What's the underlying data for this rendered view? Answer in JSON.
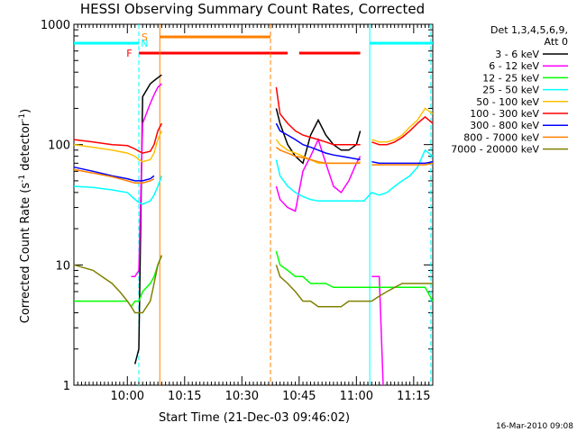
{
  "chart_data": {
    "type": "line",
    "title": "HESSI Observing Summary Count Rates, Corrected",
    "xlabel": "Start Time (21-Dec-03 09:46:02)",
    "ylabel_main": "Corrected Count Rate (s",
    "ylabel_sup1": "-1",
    "ylabel_mid": " detector",
    "ylabel_sup2": "-1",
    "ylabel_end": ")",
    "ylim": [
      1,
      1000
    ],
    "yscale": "log",
    "xlim_minutes": [
      0,
      94
    ],
    "x_ticks": [
      {
        "label": "10:00",
        "min": 14
      },
      {
        "label": "10:15",
        "min": 29
      },
      {
        "label": "10:30",
        "min": 44
      },
      {
        "label": "10:45",
        "min": 59
      },
      {
        "label": "11:00",
        "min": 74
      },
      {
        "label": "11:15",
        "min": 89
      }
    ],
    "y_ticks": [
      {
        "label": "1",
        "value": 1
      },
      {
        "label": "10",
        "value": 10
      },
      {
        "label": "100",
        "value": 100
      },
      {
        "label": "1000",
        "value": 1000
      }
    ],
    "legend_header": [
      "Det 1,3,4,5,6,9,",
      "Att 0"
    ],
    "series": [
      {
        "name": "3 - 6 keV",
        "color": "#000000",
        "x": [
          0,
          5,
          10,
          14,
          16,
          17,
          18,
          20,
          21,
          22,
          23,
          52,
          53,
          54,
          56,
          58,
          60,
          62,
          64,
          66,
          68,
          70,
          72,
          74,
          75,
          76,
          78,
          80,
          82,
          84,
          86,
          88,
          90,
          92,
          94
        ],
        "y": [
          null,
          null,
          null,
          null,
          1.5,
          2,
          250,
          320,
          340,
          360,
          380,
          null,
          200,
          150,
          100,
          80,
          70,
          120,
          160,
          120,
          100,
          90,
          90,
          100,
          130,
          null,
          null,
          null,
          null,
          null,
          null,
          null,
          null,
          null,
          null
        ]
      },
      {
        "name": "6 - 12 keV",
        "color": "#ff00ff",
        "x": [
          0,
          5,
          10,
          14,
          15,
          16,
          17,
          18,
          20,
          21,
          22,
          23,
          52,
          53,
          54,
          56,
          58,
          60,
          62,
          64,
          66,
          68,
          70,
          72,
          74,
          75,
          76,
          78,
          80,
          81,
          82,
          84,
          86,
          88,
          90,
          92,
          94
        ],
        "y": [
          null,
          null,
          null,
          null,
          8,
          8,
          9,
          150,
          220,
          260,
          300,
          320,
          null,
          45,
          35,
          30,
          28,
          60,
          80,
          110,
          70,
          45,
          40,
          50,
          70,
          80,
          null,
          8,
          8,
          1,
          null,
          null,
          null,
          null,
          null,
          null,
          null
        ]
      },
      {
        "name": "12 - 25 keV",
        "color": "#00ff00",
        "x": [
          0,
          5,
          10,
          12,
          14,
          15,
          16,
          17,
          18,
          20,
          21,
          22,
          23,
          52,
          53,
          54,
          56,
          58,
          60,
          62,
          64,
          66,
          68,
          70,
          72,
          74,
          75,
          76,
          78,
          80,
          82,
          84,
          86,
          88,
          90,
          92,
          94
        ],
        "y": [
          5,
          5,
          5,
          5,
          5,
          4.5,
          5,
          5,
          6,
          7,
          8,
          10,
          12,
          null,
          13,
          10,
          9,
          8,
          8,
          7,
          7,
          7,
          6.5,
          6.5,
          6.5,
          6.5,
          6.5,
          6.5,
          6.5,
          6.5,
          6.5,
          6.5,
          6.5,
          6.5,
          6.5,
          6.5,
          5
        ]
      },
      {
        "name": "25 - 50 keV",
        "color": "#00ffff",
        "x": [
          0,
          5,
          10,
          14,
          16,
          17,
          18,
          20,
          21,
          22,
          23,
          52,
          53,
          54,
          56,
          58,
          60,
          62,
          64,
          66,
          68,
          70,
          72,
          74,
          75,
          76,
          78,
          80,
          82,
          84,
          86,
          88,
          90,
          92,
          94
        ],
        "y": [
          45,
          44,
          42,
          40,
          35,
          33,
          32,
          34,
          38,
          45,
          55,
          null,
          75,
          55,
          45,
          40,
          37,
          35,
          34,
          34,
          34,
          34,
          34,
          34,
          34,
          34,
          40,
          38,
          40,
          45,
          50,
          55,
          65,
          90,
          80
        ]
      },
      {
        "name": "50 - 100 keV",
        "color": "#ffc000",
        "x": [
          0,
          5,
          10,
          14,
          16,
          17,
          18,
          20,
          21,
          22,
          23,
          52,
          53,
          54,
          56,
          58,
          60,
          62,
          64,
          66,
          68,
          70,
          72,
          74,
          75,
          76,
          78,
          80,
          82,
          84,
          86,
          88,
          90,
          92,
          94
        ],
        "y": [
          100,
          95,
          90,
          85,
          80,
          75,
          72,
          75,
          85,
          110,
          130,
          null,
          110,
          100,
          90,
          85,
          80,
          75,
          70,
          70,
          70,
          70,
          70,
          70,
          72,
          null,
          110,
          105,
          105,
          110,
          120,
          140,
          160,
          200,
          180
        ]
      },
      {
        "name": "100 - 300 keV",
        "color": "#ff0000",
        "x": [
          0,
          5,
          10,
          14,
          16,
          17,
          18,
          20,
          21,
          22,
          23,
          52,
          53,
          54,
          56,
          58,
          60,
          62,
          64,
          66,
          68,
          70,
          72,
          74,
          75,
          76,
          78,
          80,
          82,
          84,
          86,
          88,
          90,
          92,
          94
        ],
        "y": [
          110,
          105,
          100,
          98,
          92,
          88,
          85,
          88,
          100,
          130,
          150,
          null,
          300,
          180,
          150,
          130,
          120,
          115,
          110,
          105,
          100,
          100,
          100,
          100,
          100,
          null,
          105,
          100,
          100,
          105,
          115,
          130,
          150,
          170,
          150
        ]
      },
      {
        "name": "300 - 800 keV",
        "color": "#0000ff",
        "x": [
          0,
          5,
          10,
          14,
          16,
          17,
          18,
          20,
          21,
          22,
          23,
          52,
          53,
          54,
          56,
          58,
          60,
          62,
          64,
          66,
          68,
          70,
          72,
          74,
          75,
          76,
          78,
          80,
          82,
          84,
          86,
          88,
          90,
          92,
          94
        ],
        "y": [
          65,
          60,
          55,
          52,
          50,
          50,
          50,
          52,
          55,
          null,
          null,
          null,
          150,
          130,
          120,
          110,
          100,
          95,
          90,
          85,
          82,
          80,
          78,
          76,
          75,
          null,
          72,
          70,
          70,
          70,
          70,
          70,
          70,
          70,
          72
        ]
      },
      {
        "name": "800 - 7000 keV",
        "color": "#ff8000",
        "x": [
          0,
          5,
          10,
          14,
          16,
          17,
          18,
          20,
          21,
          22,
          23,
          52,
          53,
          54,
          56,
          58,
          60,
          62,
          64,
          66,
          68,
          70,
          72,
          74,
          75,
          76,
          78,
          80,
          82,
          84,
          86,
          88,
          90,
          92,
          94
        ],
        "y": [
          62,
          58,
          54,
          50,
          48,
          48,
          48,
          50,
          52,
          null,
          null,
          null,
          95,
          90,
          85,
          80,
          78,
          75,
          72,
          70,
          70,
          70,
          70,
          70,
          70,
          null,
          68,
          68,
          68,
          68,
          68,
          68,
          68,
          68,
          70
        ]
      },
      {
        "name": "7000 - 20000 keV",
        "color": "#808000",
        "x": [
          0,
          5,
          10,
          12,
          14,
          15,
          16,
          17,
          18,
          20,
          21,
          22,
          23,
          52,
          53,
          54,
          56,
          58,
          60,
          62,
          64,
          66,
          68,
          70,
          72,
          74,
          75,
          76,
          78,
          80,
          82,
          84,
          86,
          88,
          90,
          92,
          94
        ],
        "y": [
          10,
          9,
          7,
          6,
          5,
          4.5,
          4,
          4,
          4,
          5,
          7,
          10,
          12,
          null,
          10,
          8,
          7,
          6,
          5,
          5,
          4.5,
          4.5,
          4.5,
          4.5,
          5,
          5,
          5,
          5,
          5,
          5.5,
          6,
          6.5,
          7,
          7,
          7,
          7,
          7
        ]
      }
    ],
    "state_bars": [
      {
        "label": "S",
        "color": "#ff8000",
        "start_min": 22.5,
        "end_min": 51.5
      },
      {
        "label": "N",
        "color": "#00ffff",
        "segments": [
          [
            0,
            17
          ],
          [
            77.5,
            94
          ]
        ]
      },
      {
        "label": "F",
        "color": "#ff0000",
        "segments": [
          [
            17,
            56
          ],
          [
            59,
            75
          ]
        ]
      }
    ],
    "vlines": [
      {
        "min": 17,
        "color": "#00ffff",
        "style": "dashed"
      },
      {
        "min": 22.5,
        "color": "#ff8000",
        "style": "solid"
      },
      {
        "min": 51.5,
        "color": "#ff8000",
        "style": "dashed"
      },
      {
        "min": 77.5,
        "color": "#00ffff",
        "style": "solid"
      },
      {
        "min": 93.5,
        "color": "#00ffff",
        "style": "dashed"
      }
    ],
    "footer_date": "16-Mar-2010 09:08"
  }
}
